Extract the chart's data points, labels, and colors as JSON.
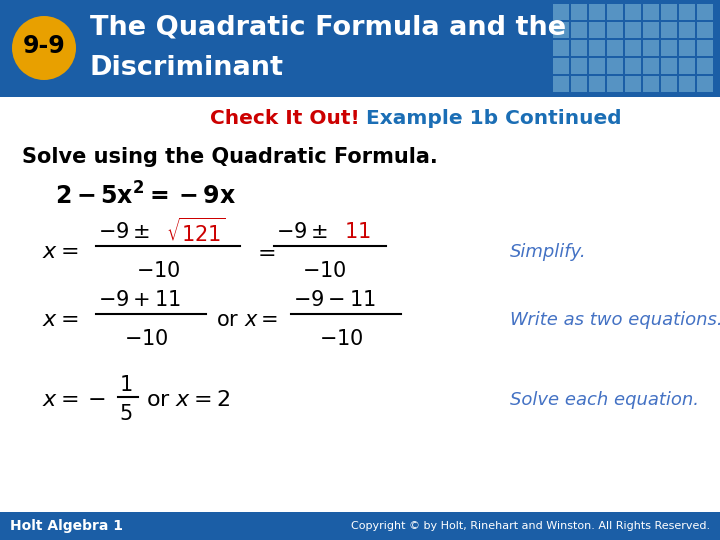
{
  "header_bg_color": "#1B5EA6",
  "header_text_color": "#FFFFFF",
  "badge_bg_color": "#E8A000",
  "badge_text": "9-9",
  "badge_text_color": "#000000",
  "check_it_out_color": "#CC0000",
  "check_it_out_text": "Check It Out!",
  "example_text": " Example 1b Continued",
  "example_text_color": "#1B6EB5",
  "solve_text": "Solve using the Quadratic Formula.",
  "solve_text_color": "#000000",
  "equation_color": "#000000",
  "red_color": "#CC0000",
  "blue_italic_color": "#4472C4",
  "footer_bg_color": "#1B5EA6",
  "footer_left": "Holt Algebra 1",
  "footer_right": "Copyright © by Holt, Rinehart and Winston. All Rights Reserved.",
  "footer_text_color": "#FFFFFF",
  "bg_color": "#FFFFFF",
  "grid_color": "#7FB8D8"
}
